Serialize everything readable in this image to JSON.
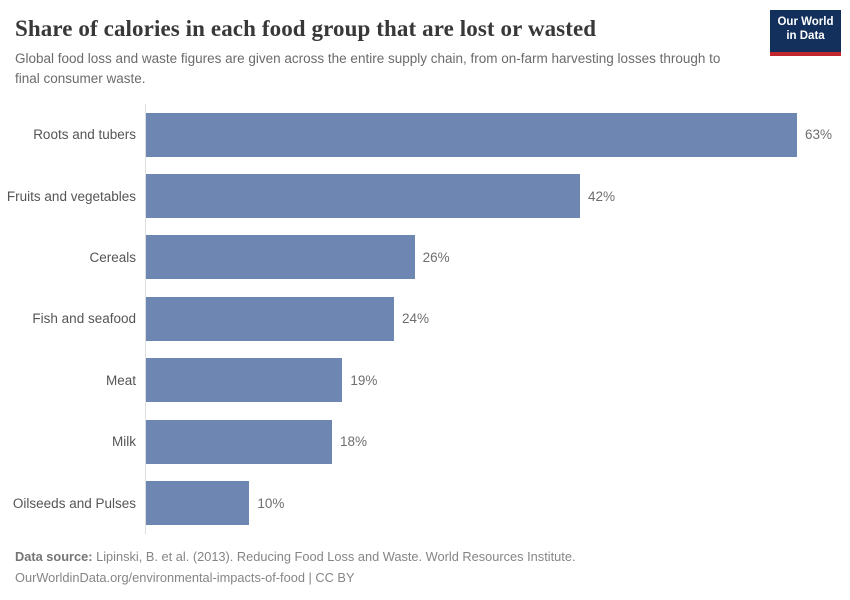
{
  "header": {
    "title": "Share of calories in each food group that are lost or wasted",
    "subtitle": "Global food loss and waste figures are given across the entire supply chain, from on-farm harvesting losses through to final consumer waste."
  },
  "logo": {
    "line1": "Our World",
    "line2": "in Data"
  },
  "chart_data": {
    "type": "bar",
    "orientation": "horizontal",
    "title": "Share of calories in each food group that are lost or wasted",
    "categories": [
      "Roots and tubers",
      "Fruits and vegetables",
      "Cereals",
      "Fish and seafood",
      "Meat",
      "Milk",
      "Oilseeds and Pulses"
    ],
    "values": [
      63,
      42,
      26,
      24,
      19,
      18,
      10
    ],
    "value_labels": [
      "63%",
      "42%",
      "26%",
      "24%",
      "19%",
      "18%",
      "10%"
    ],
    "unit": "%",
    "xlim": [
      0,
      63
    ],
    "grid": false,
    "legend": false,
    "bar_color": "#6e87b2",
    "axis_color": "#dedede"
  },
  "footer": {
    "data_source_label": "Data source:",
    "data_source_text": " Lipinski, B. et al. (2013). Reducing Food Loss and Waste. World Resources Institute.",
    "note": "OurWorldinData.org/environmental-impacts-of-food | CC BY"
  },
  "colors": {
    "logo_bg": "#12305b",
    "logo_accent": "#c1272d",
    "bar": "#6e87b2",
    "axis": "#dedede"
  }
}
